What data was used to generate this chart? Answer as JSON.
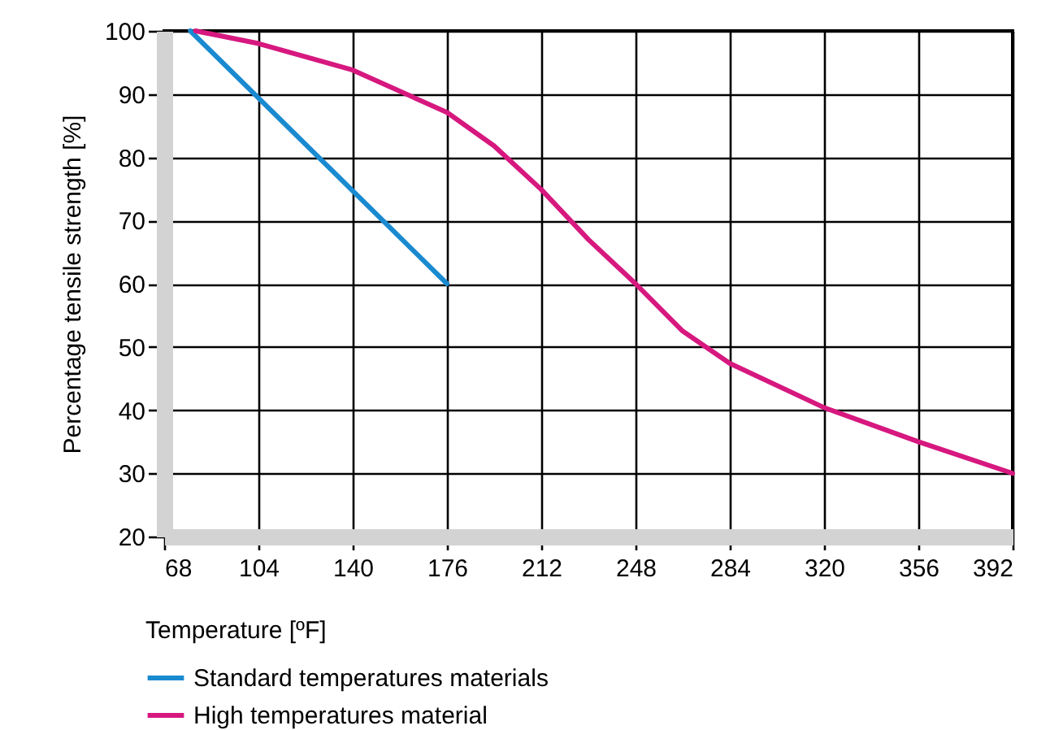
{
  "chart_data": {
    "type": "line",
    "xlabel": "Temperature [ºF]",
    "ylabel": "Percentage tensile strength [%]",
    "xlim": [
      68,
      392
    ],
    "xticks": [
      68,
      104,
      140,
      176,
      212,
      248,
      284,
      320,
      356,
      392
    ],
    "ylim": [
      20,
      100
    ],
    "yticks": [
      20,
      30,
      40,
      50,
      60,
      70,
      80,
      90,
      100
    ],
    "grid": true,
    "legend": "bottom",
    "series": [
      {
        "name": "Standard temperatures materials",
        "color": "#1a8ad0",
        "x": [
          78,
          176
        ],
        "values": [
          100,
          60
        ]
      },
      {
        "name": "High temperatures material",
        "color": "#d6187f",
        "x": [
          80,
          104,
          140,
          176,
          194,
          212,
          230,
          248,
          266,
          284,
          320,
          356,
          392
        ],
        "values": [
          100,
          98,
          93.8,
          87.1,
          81.8,
          74.9,
          67,
          60,
          52.5,
          47.4,
          40.4,
          35,
          30
        ]
      }
    ]
  }
}
